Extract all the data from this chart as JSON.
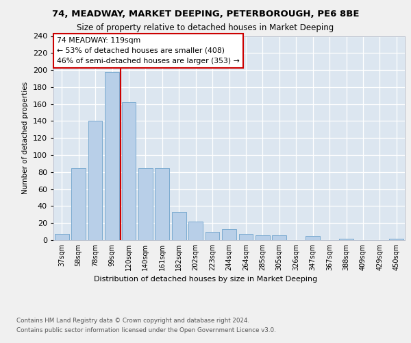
{
  "title1": "74, MEADWAY, MARKET DEEPING, PETERBOROUGH, PE6 8BE",
  "title2": "Size of property relative to detached houses in Market Deeping",
  "xlabel": "Distribution of detached houses by size in Market Deeping",
  "ylabel": "Number of detached properties",
  "categories": [
    "37sqm",
    "58sqm",
    "78sqm",
    "99sqm",
    "120sqm",
    "140sqm",
    "161sqm",
    "182sqm",
    "202sqm",
    "223sqm",
    "244sqm",
    "264sqm",
    "285sqm",
    "305sqm",
    "326sqm",
    "347sqm",
    "367sqm",
    "388sqm",
    "409sqm",
    "429sqm",
    "450sqm"
  ],
  "values": [
    7,
    85,
    140,
    198,
    162,
    85,
    85,
    33,
    22,
    10,
    13,
    7,
    6,
    6,
    0,
    5,
    0,
    2,
    0,
    0,
    2
  ],
  "bar_color": "#b8cfe8",
  "bar_edge_color": "#7aaad0",
  "highlight_line_color": "#cc0000",
  "annotation_text": "74 MEADWAY: 119sqm\n← 53% of detached houses are smaller (408)\n46% of semi-detached houses are larger (353) →",
  "annotation_box_facecolor": "#ffffff",
  "annotation_box_edgecolor": "#cc0000",
  "ylim_max": 240,
  "ytick_step": 20,
  "footer1": "Contains HM Land Registry data © Crown copyright and database right 2024.",
  "footer2": "Contains public sector information licensed under the Open Government Licence v3.0.",
  "fig_facecolor": "#f0f0f0",
  "axes_facecolor": "#dce6f0"
}
